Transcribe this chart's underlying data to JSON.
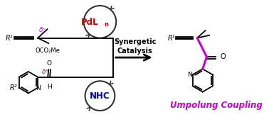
{
  "bg_color": "#ffffff",
  "synergetic_text": "Synergetic\nCatalysis",
  "umpolung_text": "Umpolung Coupling",
  "pdln_color": "#cc0000",
  "nhc_color": "#0000cc",
  "magenta_color": "#cc00cc",
  "black": "#000000",
  "circle_color": "#333333",
  "umpolung_color": "#cc00cc",
  "delta_plus": "δ⁺",
  "r1_text": "R¹",
  "r2_text": "R²",
  "oco2me_text": "OCO₂Me",
  "fig_w": 3.78,
  "fig_h": 1.65,
  "dpi": 100
}
